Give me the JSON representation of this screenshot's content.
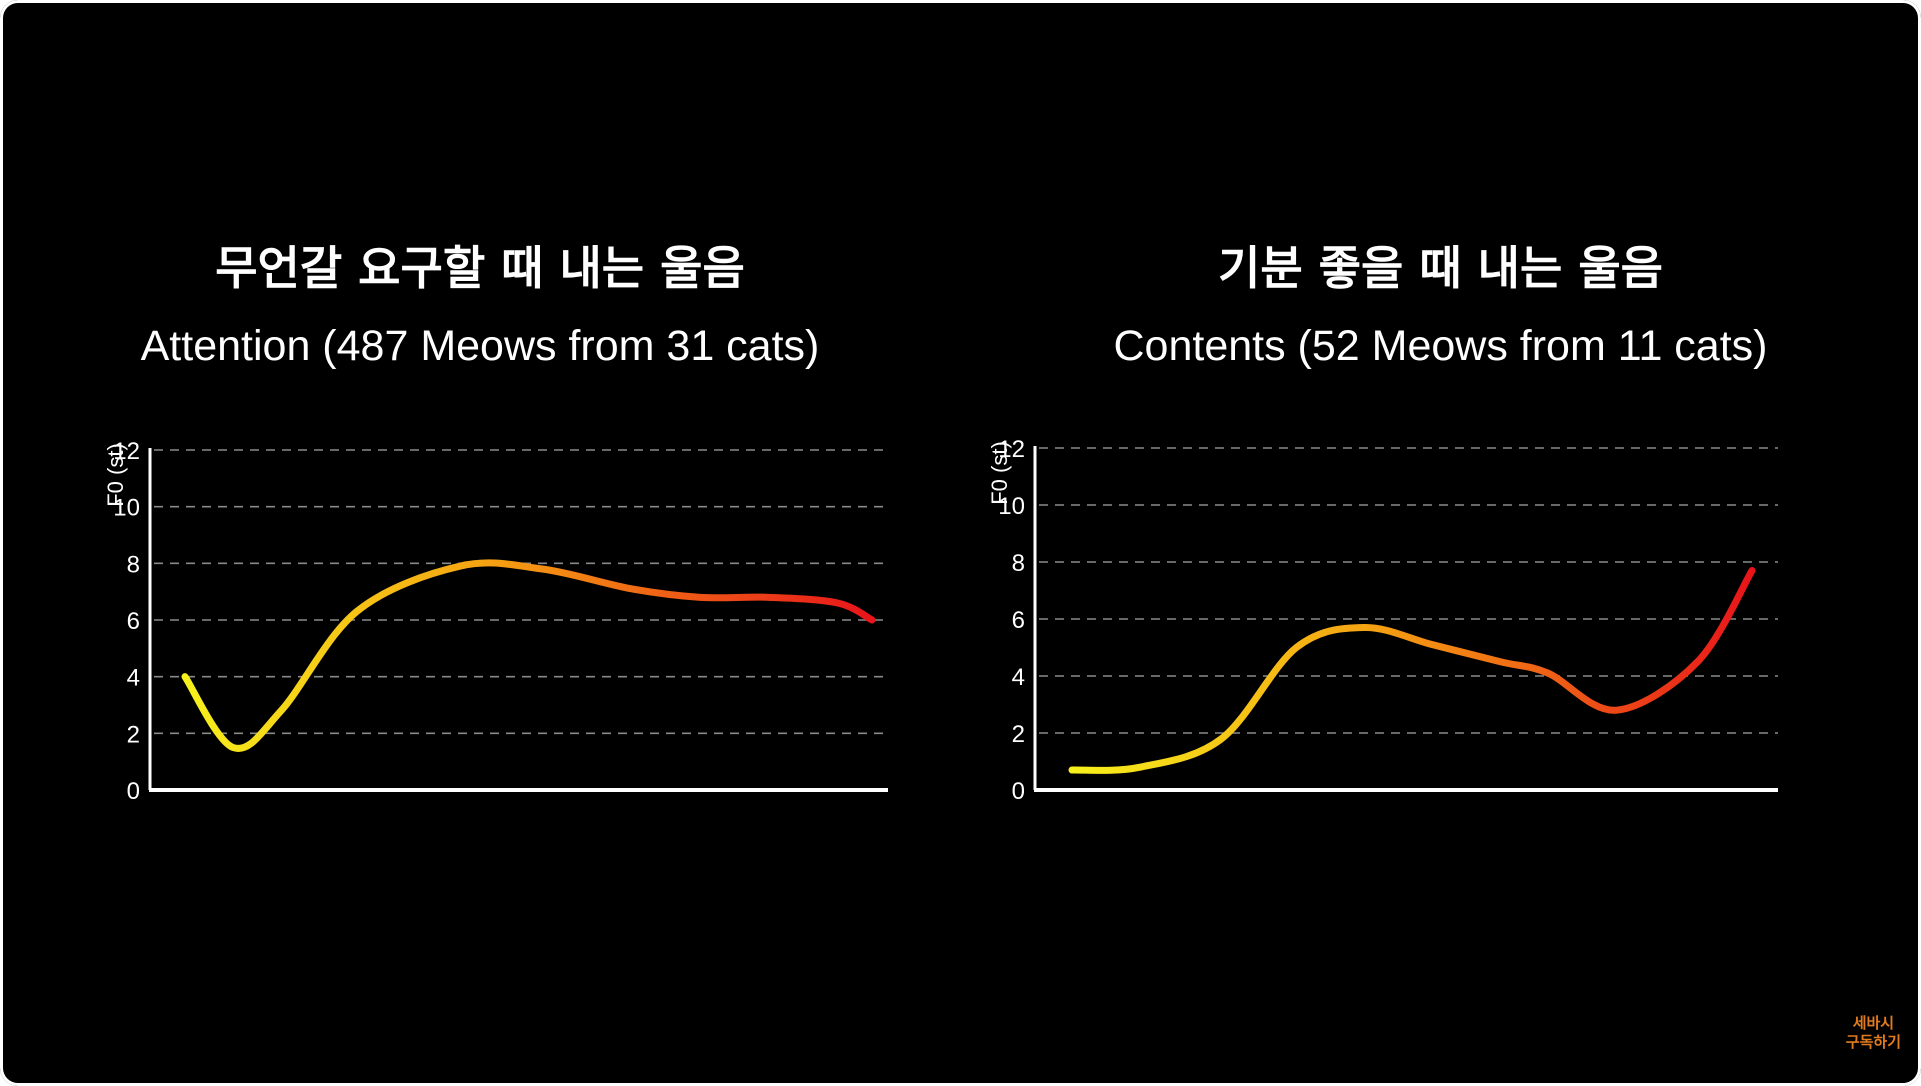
{
  "colors": {
    "background": "#000000",
    "text": "#ffffff",
    "grid": "#8a8a8a",
    "axis": "#ffffff",
    "gradient_start": "#f7f01c",
    "gradient_mid": "#f5a012",
    "gradient_end": "#e8141a",
    "watermark": "#e07a1f"
  },
  "chart_data": [
    {
      "type": "line",
      "title_ko": "무언갈 요구할 때 내는 울음",
      "title": "Attention (487 Meows from 31 cats)",
      "ylabel": "F0 (st)",
      "xlabel": "",
      "ylim": [
        0,
        12
      ],
      "yticks": [
        "0",
        "2",
        "4",
        "6",
        "8",
        "10",
        "12"
      ],
      "grid": true,
      "x": [
        0,
        0.07,
        0.14,
        0.25,
        0.4,
        0.52,
        0.65,
        0.75,
        0.85,
        0.95,
        1.0
      ],
      "values": [
        4.0,
        1.5,
        2.8,
        6.3,
        7.9,
        7.8,
        7.1,
        6.8,
        6.8,
        6.6,
        6.0
      ]
    },
    {
      "type": "line",
      "title_ko": "기분 좋을 때 내는 울음",
      "title": "Contents (52 Meows from 11 cats)",
      "ylabel": "F0 (st)",
      "xlabel": "",
      "ylim": [
        0,
        12
      ],
      "yticks": [
        "0",
        "2",
        "4",
        "6",
        "8",
        "10",
        "12"
      ],
      "grid": true,
      "x": [
        0,
        0.1,
        0.22,
        0.33,
        0.43,
        0.53,
        0.63,
        0.7,
        0.8,
        0.92,
        1.0
      ],
      "values": [
        0.7,
        0.8,
        1.8,
        5.0,
        5.7,
        5.1,
        4.5,
        4.1,
        2.8,
        4.5,
        7.7
      ]
    }
  ],
  "watermark": {
    "line1": "세바시",
    "line2": "구독하기"
  }
}
